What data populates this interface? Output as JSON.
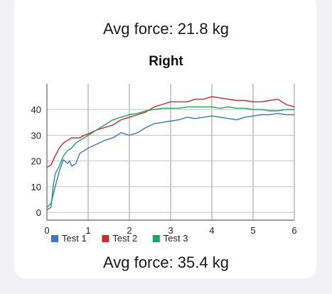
{
  "top_avg_label": "Avg force: 21.8 kg",
  "bottom_avg_label": "Avg force: 35.4 kg",
  "chart_data": {
    "type": "line",
    "title": "Right",
    "xlim": [
      0,
      6
    ],
    "ylim": [
      -3,
      50
    ],
    "x_ticks": [
      "0",
      "1",
      "2",
      "3",
      "4",
      "5",
      "6"
    ],
    "y_ticks": [
      "0",
      "10",
      "20",
      "30",
      "40"
    ],
    "grid": true,
    "legend_placement": "bottom-left",
    "series": [
      {
        "name": "Test 1",
        "color": "#3b78c3",
        "points": [
          [
            0,
            2
          ],
          [
            0.1,
            3.5
          ],
          [
            0.2,
            10
          ],
          [
            0.3,
            16
          ],
          [
            0.4,
            20.5
          ],
          [
            0.5,
            19
          ],
          [
            0.55,
            20
          ],
          [
            0.6,
            18
          ],
          [
            0.7,
            19
          ],
          [
            0.8,
            23
          ],
          [
            0.9,
            24
          ],
          [
            1.0,
            25
          ],
          [
            1.2,
            26.5
          ],
          [
            1.4,
            28
          ],
          [
            1.6,
            29
          ],
          [
            1.8,
            31
          ],
          [
            2.0,
            30
          ],
          [
            2.2,
            31
          ],
          [
            2.4,
            33
          ],
          [
            2.6,
            34.5
          ],
          [
            2.8,
            35
          ],
          [
            3.0,
            35.5
          ],
          [
            3.2,
            36
          ],
          [
            3.4,
            37
          ],
          [
            3.6,
            36.5
          ],
          [
            3.8,
            37
          ],
          [
            4.0,
            37.5
          ],
          [
            4.2,
            37
          ],
          [
            4.4,
            36.5
          ],
          [
            4.6,
            36
          ],
          [
            4.8,
            37
          ],
          [
            5.0,
            37.5
          ],
          [
            5.2,
            38
          ],
          [
            5.4,
            38
          ],
          [
            5.6,
            38.5
          ],
          [
            5.8,
            38
          ],
          [
            6.0,
            38
          ]
        ]
      },
      {
        "name": "Test 2",
        "color": "#cc2b2b",
        "points": [
          [
            0,
            17.5
          ],
          [
            0.1,
            18.5
          ],
          [
            0.2,
            22
          ],
          [
            0.3,
            25
          ],
          [
            0.4,
            27
          ],
          [
            0.5,
            28
          ],
          [
            0.6,
            29
          ],
          [
            0.7,
            29
          ],
          [
            0.8,
            29
          ],
          [
            0.9,
            30
          ],
          [
            1.0,
            30.5
          ],
          [
            1.2,
            32
          ],
          [
            1.4,
            33
          ],
          [
            1.6,
            34
          ],
          [
            1.8,
            36
          ],
          [
            2.0,
            37
          ],
          [
            2.2,
            38
          ],
          [
            2.4,
            39
          ],
          [
            2.6,
            41
          ],
          [
            2.8,
            42
          ],
          [
            3.0,
            43
          ],
          [
            3.2,
            43
          ],
          [
            3.4,
            43
          ],
          [
            3.6,
            44
          ],
          [
            3.8,
            44
          ],
          [
            4.0,
            45
          ],
          [
            4.2,
            44.5
          ],
          [
            4.4,
            44
          ],
          [
            4.6,
            43.5
          ],
          [
            4.8,
            43.5
          ],
          [
            5.0,
            43
          ],
          [
            5.2,
            43
          ],
          [
            5.4,
            43.5
          ],
          [
            5.6,
            44
          ],
          [
            5.8,
            42
          ],
          [
            6.0,
            41
          ]
        ]
      },
      {
        "name": "Test 3",
        "color": "#1aa65a",
        "points": [
          [
            0,
            1
          ],
          [
            0.1,
            2
          ],
          [
            0.15,
            10
          ],
          [
            0.2,
            15
          ],
          [
            0.3,
            18
          ],
          [
            0.4,
            22
          ],
          [
            0.5,
            24
          ],
          [
            0.6,
            25
          ],
          [
            0.7,
            27
          ],
          [
            0.8,
            28
          ],
          [
            0.9,
            29
          ],
          [
            1.0,
            30
          ],
          [
            1.2,
            32
          ],
          [
            1.4,
            34
          ],
          [
            1.6,
            36
          ],
          [
            1.8,
            37
          ],
          [
            2.0,
            38
          ],
          [
            2.2,
            38.5
          ],
          [
            2.4,
            39.5
          ],
          [
            2.6,
            40
          ],
          [
            2.8,
            40.5
          ],
          [
            3.0,
            40.5
          ],
          [
            3.2,
            40.5
          ],
          [
            3.4,
            41
          ],
          [
            3.6,
            41
          ],
          [
            3.8,
            41
          ],
          [
            4.0,
            41
          ],
          [
            4.2,
            40.5
          ],
          [
            4.4,
            41
          ],
          [
            4.6,
            40.5
          ],
          [
            4.8,
            40.5
          ],
          [
            5.0,
            40
          ],
          [
            5.2,
            40
          ],
          [
            5.4,
            39.5
          ],
          [
            5.6,
            39.5
          ],
          [
            5.8,
            40
          ],
          [
            6.0,
            40
          ]
        ]
      }
    ]
  }
}
